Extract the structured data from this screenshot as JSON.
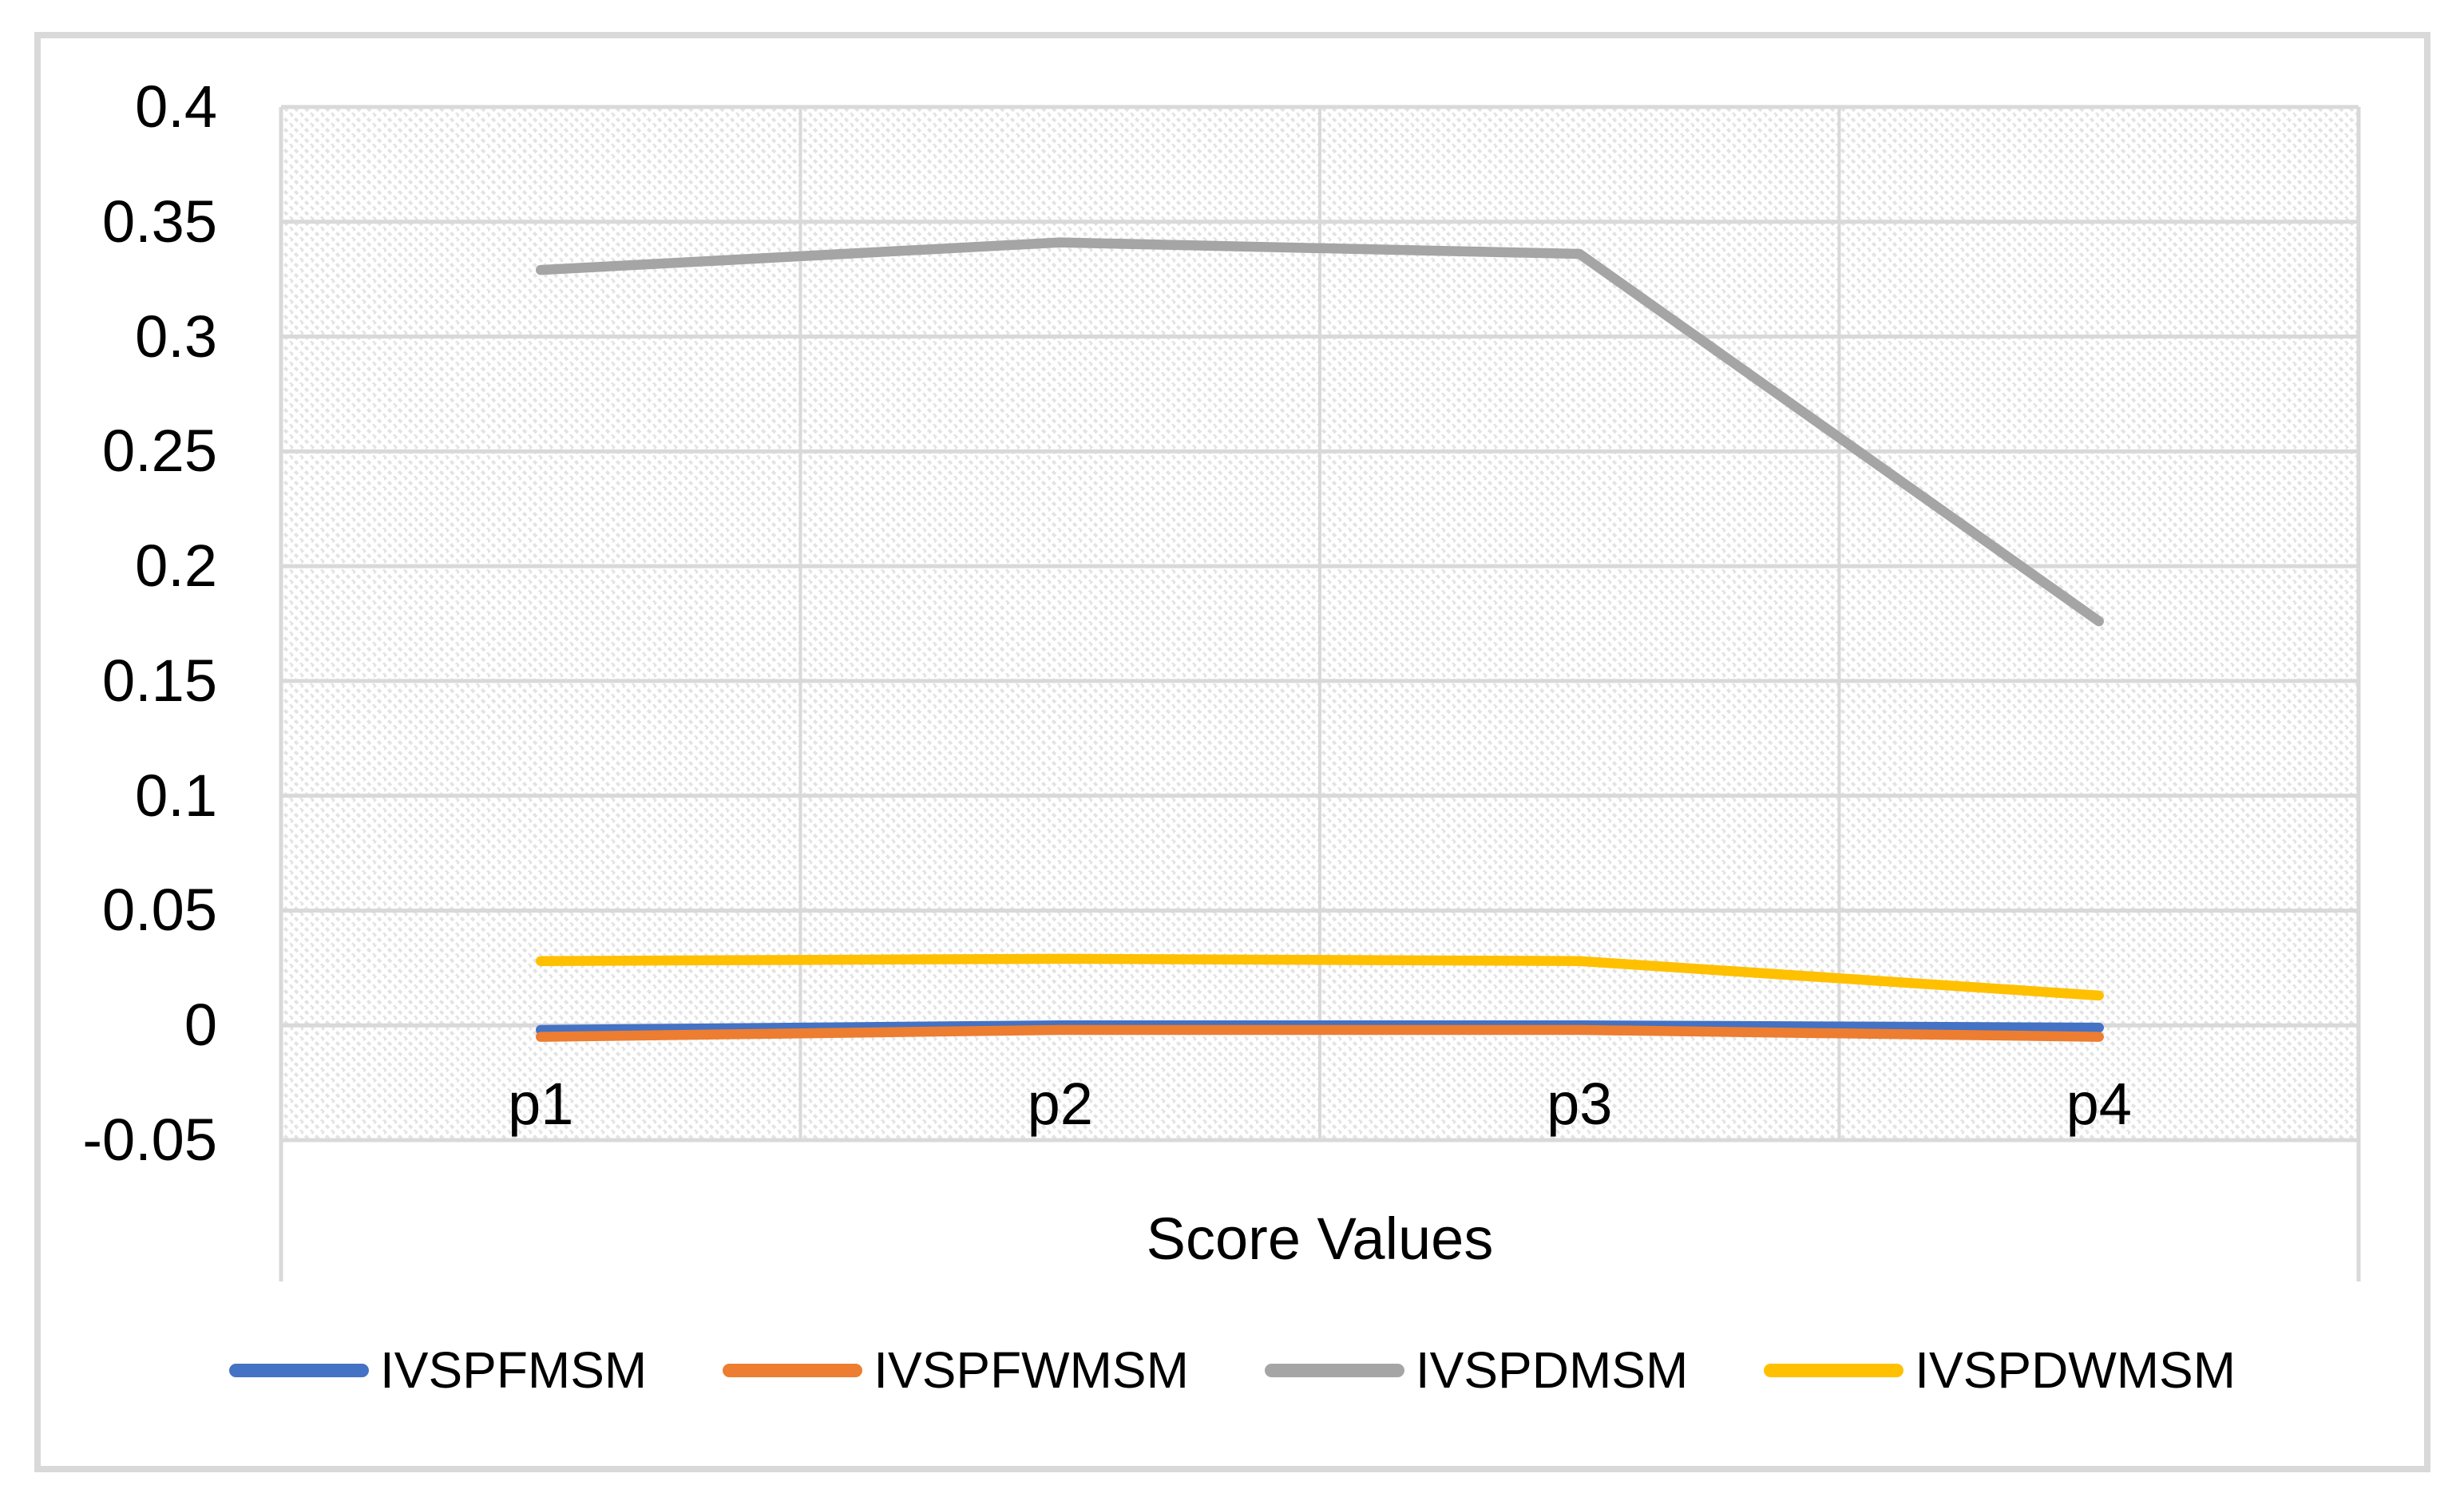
{
  "chart_data": {
    "type": "line",
    "title": "",
    "xlabel": "Score Values",
    "categories": [
      "p1",
      "p2",
      "p3",
      "p4"
    ],
    "series": [
      {
        "name": "IVSPFMSM",
        "color": "#4472C4",
        "values": [
          -0.002,
          0.0,
          0.0,
          -0.001
        ]
      },
      {
        "name": "IVSPFWMSM",
        "color": "#ED7D31",
        "values": [
          -0.005,
          -0.002,
          -0.002,
          -0.005
        ]
      },
      {
        "name": "IVSPDMSM",
        "color": "#A5A5A5",
        "values": [
          0.329,
          0.341,
          0.336,
          0.176
        ]
      },
      {
        "name": "IVSPDWMSM",
        "color": "#FFC000",
        "values": [
          0.028,
          0.029,
          0.028,
          0.013
        ]
      }
    ],
    "y_ticks": [
      "0.4",
      "0.35",
      "0.3",
      "0.25",
      "0.2",
      "0.15",
      "0.1",
      "0.05",
      "0",
      "-0.05"
    ],
    "y_tick_values": [
      0.4,
      0.35,
      0.3,
      0.25,
      0.2,
      0.15,
      0.1,
      0.05,
      0,
      -0.05
    ],
    "ylim": [
      -0.05,
      0.4
    ],
    "grid": true,
    "legend_position": "bottom",
    "plot_area_pattern": "diagonal-hatch",
    "gridline_color": "#D9D9D9",
    "hatch_color": "#E3E3E3",
    "text_color": "#000000",
    "frame_color": "#D9D9D9"
  }
}
